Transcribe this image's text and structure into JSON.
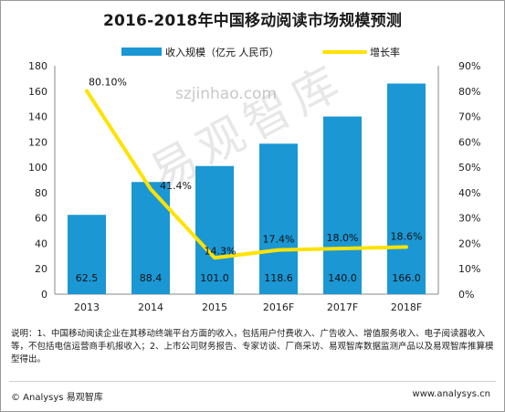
{
  "title": "2016-2018年中国移动阅读市场规模预测",
  "watermark": {
    "url": "szjinhao.com",
    "brand": "易观智库"
  },
  "note": "说明：1、中国移动阅读企业在其移动终端平台方面的收入，包括用户付费收入、广告收入、增值服务收入、电子阅读器收入等，不包括电信运营商手机报收入；2、上市公司财务报告、专家访谈、厂商采访、易观智库数据监测产品以及易观智库推算模型得出。",
  "footer": {
    "left": "© Analysys 易观智库",
    "right": "www.analysys.cn"
  },
  "colors": {
    "bar": "#1b97d4",
    "line": "#ffe200"
  },
  "chart_data": {
    "type": "bar",
    "title": "2016-2018年中国移动阅读市场规模预测",
    "categories": [
      "2013",
      "2014",
      "2015",
      "2016F",
      "2017F",
      "2018F"
    ],
    "series": [
      {
        "name": "收入规模（亿元 人民币）",
        "type": "bar",
        "axis": "left",
        "values": [
          62.5,
          88.4,
          101.0,
          118.6,
          140.0,
          166.0
        ],
        "labels": [
          "62.5",
          "88.4",
          "101.0",
          "118.6",
          "140.0",
          "166.0"
        ]
      },
      {
        "name": "增长率",
        "type": "line",
        "axis": "right",
        "values": [
          80.1,
          41.4,
          14.3,
          17.4,
          18.0,
          18.6
        ],
        "labels": [
          "80.10%",
          "41.4%",
          "14.3%",
          "17.4%",
          "18.0%",
          "18.6%"
        ]
      }
    ],
    "y_left": {
      "min": 0,
      "max": 180,
      "ticks": [
        "0",
        "20",
        "40",
        "60",
        "80",
        "100",
        "120",
        "140",
        "160",
        "180"
      ]
    },
    "y_right": {
      "min": 0,
      "max": 90,
      "ticks": [
        "0%",
        "10%",
        "20%",
        "30%",
        "40%",
        "50%",
        "60%",
        "70%",
        "80%",
        "90%"
      ]
    },
    "grid": false,
    "legend": "top"
  }
}
